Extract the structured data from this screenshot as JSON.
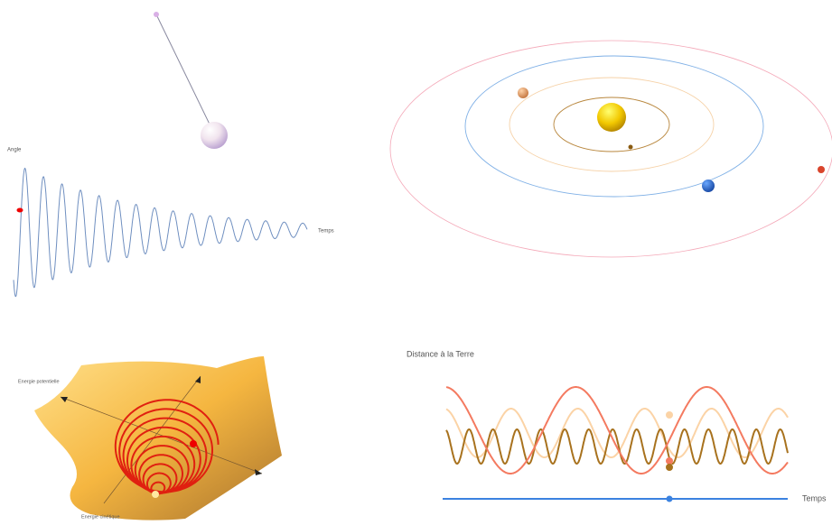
{
  "pendulum": {
    "y_axis_label": "Angle",
    "x_axis_label": "Temps"
  },
  "energy": {
    "potential_label": "Energie potentielle",
    "kinetic_label": "Energie cinétique"
  },
  "distance": {
    "title": "Distance à la Terre",
    "x_axis_label": "Temps"
  }
}
